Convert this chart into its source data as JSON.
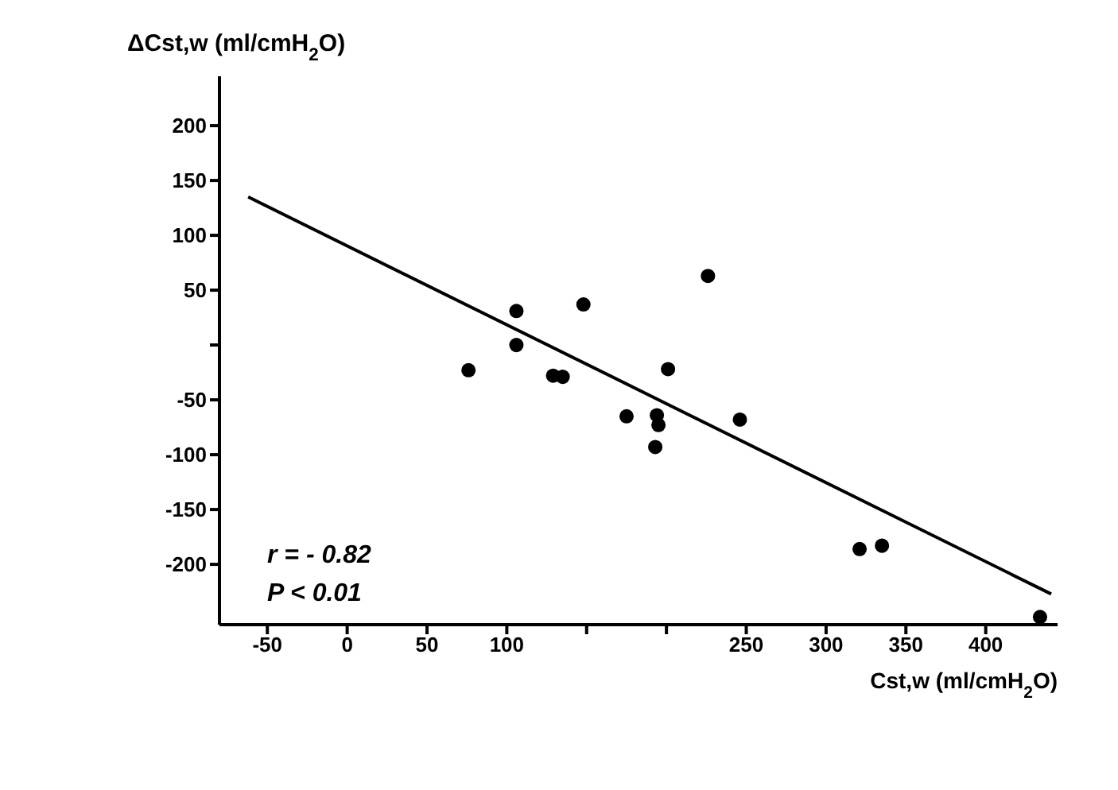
{
  "chart_data": {
    "type": "scatter",
    "xlabel": "Cst,w (ml/cmH$_{2}$O)",
    "ylabel": "ΔCst,w (ml/cmH$_{2}$O)",
    "xlim": [
      -80,
      445
    ],
    "ylim": [
      -255,
      245
    ],
    "xticks": [
      -50,
      0,
      50,
      100,
      {
        "value": 150,
        "label": null
      },
      {
        "value": 200,
        "label": null
      },
      250,
      300,
      350,
      400
    ],
    "yticks": [
      -200,
      -150,
      -100,
      -50,
      {
        "value": 0,
        "label": null
      },
      50,
      100,
      150,
      200
    ],
    "grid": false,
    "legend": false,
    "series": [
      {
        "color": "#000000",
        "marker": "circle",
        "x": [
          106,
          106,
          76,
          148,
          129,
          135,
          175,
          194,
          195,
          193,
          201,
          226,
          246,
          321,
          335,
          434
        ],
        "values": [
          31,
          0,
          -23,
          37,
          -28,
          -29,
          -65,
          -64,
          -73,
          -93,
          -22,
          63,
          -68,
          -186,
          -183,
          -248
        ]
      },
      {
        "type": "line",
        "color": "#000000",
        "marker": "none",
        "line_style": "solid",
        "x": [
          -62,
          441
        ],
        "values": [
          135,
          -227
        ]
      }
    ],
    "annotations": [
      "r = - 0.82",
      "P < 0.01"
    ]
  }
}
